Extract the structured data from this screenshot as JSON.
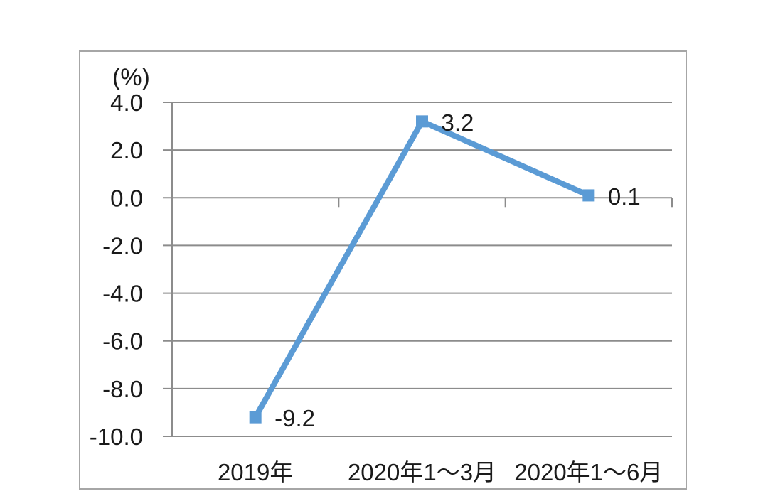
{
  "chart_data": {
    "type": "line",
    "title": "",
    "unit_label": "(%)",
    "categories": [
      "2019年",
      "2020年1～3月",
      "2020年1～6月"
    ],
    "values": [
      -9.2,
      3.2,
      0.1
    ],
    "data_labels": [
      "-9.2",
      "3.2",
      "0.1"
    ],
    "y_ticks": [
      4,
      2,
      0,
      -2,
      -4,
      -6,
      -8,
      -10
    ],
    "y_tick_labels": [
      "4.0",
      "2.0",
      "0.0",
      "-2.0",
      "-4.0",
      "-6.0",
      "-8.0",
      "-10.0"
    ],
    "ylim": [
      -10,
      4
    ],
    "grid": true,
    "legend": "none",
    "marker_shape": "square",
    "colors": {
      "line": "#5B9BD5",
      "marker": "#5B9BD5",
      "gridline": "#8C8C8C",
      "axis": "#8C8C8C",
      "frame_border": "#A6A6A6",
      "text": "#1A1A1A",
      "background": "#FFFFFF"
    }
  }
}
